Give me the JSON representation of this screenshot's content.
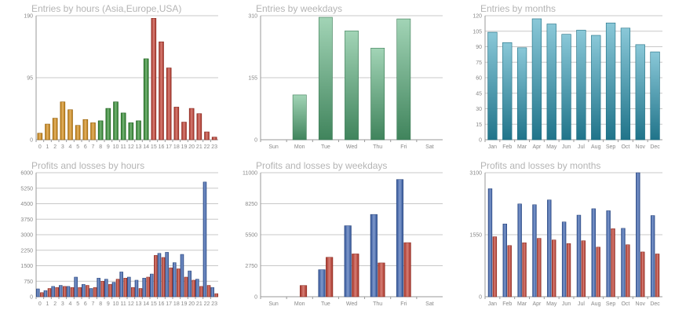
{
  "colors": {
    "hours_morning": "#d48a12",
    "hours_day": "#2e8b2e",
    "hours_evening": "#c0392b",
    "weekday_green": "#55b07a",
    "month_teal": "#2a9bb8",
    "profit_blue": "#3a62b0",
    "loss_red": "#c0392b",
    "grid": "#c8c8c8",
    "axis": "#999999"
  },
  "chart_data": [
    {
      "id": "entries-hours",
      "type": "bar",
      "title": "Entries by hours (Asia,Europe,USA)",
      "categories": [
        "0",
        "1",
        "2",
        "3",
        "4",
        "5",
        "6",
        "7",
        "8",
        "9",
        "10",
        "11",
        "12",
        "13",
        "14",
        "15",
        "16",
        "17",
        "18",
        "19",
        "20",
        "21",
        "22",
        "23"
      ],
      "values": [
        10,
        24,
        33,
        58,
        46,
        22,
        31,
        26,
        29,
        48,
        58,
        41,
        26,
        29,
        124,
        186,
        150,
        110,
        50,
        27,
        48,
        40,
        12,
        4
      ],
      "bar_colors": [
        "orange",
        "orange",
        "orange",
        "orange",
        "orange",
        "orange",
        "orange",
        "orange",
        "green",
        "green",
        "green",
        "green",
        "green",
        "green",
        "green",
        "red",
        "red",
        "red",
        "red",
        "red",
        "red",
        "red",
        "red",
        "red"
      ],
      "ylim": [
        0,
        190
      ],
      "yticks": [
        0,
        95,
        190
      ],
      "ylabels": [
        "0",
        "95",
        "190"
      ]
    },
    {
      "id": "entries-weekdays",
      "type": "bar",
      "title": "Entries by weekdays",
      "categories": [
        "Sun",
        "Mon",
        "Tue",
        "Wed",
        "Thu",
        "Fri",
        "Sat"
      ],
      "values": [
        0,
        112,
        306,
        272,
        229,
        302,
        0
      ],
      "ylim": [
        0,
        310
      ],
      "yticks": [
        0,
        155,
        310
      ],
      "ylabels": [
        "0",
        "155",
        "310"
      ]
    },
    {
      "id": "entries-months",
      "type": "bar",
      "title": "Entries by months",
      "categories": [
        "Jan",
        "Feb",
        "Mar",
        "Apr",
        "May",
        "Jun",
        "Jul",
        "Aug",
        "Sep",
        "Oct",
        "Nov",
        "Dec"
      ],
      "values": [
        104,
        94,
        89,
        117,
        112,
        102,
        106,
        101,
        113,
        108,
        92,
        85
      ],
      "ylim": [
        0,
        120
      ],
      "yticks": [
        0,
        15,
        30,
        45,
        60,
        75,
        90,
        105,
        120
      ],
      "ylabels": [
        "0",
        "15",
        "30",
        "45",
        "60",
        "75",
        "90",
        "105",
        "120"
      ]
    },
    {
      "id": "pl-hours",
      "type": "bar",
      "title": "Profits and losses by hours",
      "categories": [
        "0",
        "1",
        "2",
        "3",
        "4",
        "5",
        "6",
        "7",
        "8",
        "9",
        "10",
        "11",
        "12",
        "13",
        "14",
        "15",
        "16",
        "17",
        "18",
        "19",
        "20",
        "21",
        "22",
        "23"
      ],
      "series": [
        {
          "values": [
            380,
            300,
            500,
            550,
            500,
            950,
            600,
            400,
            900,
            850,
            700,
            1200,
            950,
            800,
            900,
            1100,
            2100,
            2150,
            1650,
            2050,
            1250,
            850,
            5550,
            450
          ]
        },
        {
          "values": [
            200,
            400,
            450,
            500,
            450,
            450,
            550,
            450,
            750,
            600,
            850,
            900,
            450,
            400,
            950,
            2000,
            1900,
            1400,
            1350,
            950,
            800,
            500,
            550,
            150
          ]
        }
      ],
      "series_colors": [
        "blue",
        "red"
      ],
      "ylim": [
        0,
        6000
      ],
      "yticks": [
        0,
        750,
        1500,
        2250,
        3000,
        3750,
        4500,
        5250,
        6000
      ],
      "ylabels": [
        "0",
        "750",
        "1500",
        "2250",
        "3000",
        "3750",
        "4500",
        "5250",
        "6000"
      ]
    },
    {
      "id": "pl-weekdays",
      "type": "bar",
      "title": "Profits and losses by weekdays",
      "categories": [
        "Sun",
        "Mon",
        "Tue",
        "Wed",
        "Thu",
        "Fri",
        "Sat"
      ],
      "series": [
        {
          "values": [
            0,
            0,
            2400,
            6300,
            7300,
            10400,
            0
          ]
        },
        {
          "values": [
            0,
            1000,
            3500,
            3800,
            3000,
            4800,
            0
          ]
        }
      ],
      "series_colors": [
        "blue",
        "red"
      ],
      "ylim": [
        0,
        11000
      ],
      "yticks": [
        0,
        2750,
        5500,
        8250,
        11000
      ],
      "ylabels": [
        "0",
        "2750",
        "5500",
        "8250",
        "11000"
      ]
    },
    {
      "id": "pl-months",
      "type": "bar",
      "title": "Profits and losses by months",
      "categories": [
        "Jan",
        "Feb",
        "Mar",
        "Apr",
        "May",
        "Jun",
        "Jul",
        "Aug",
        "Sep",
        "Oct",
        "Nov",
        "Dec"
      ],
      "series": [
        {
          "values": [
            2700,
            1820,
            2320,
            2300,
            2420,
            1870,
            2040,
            2200,
            2150,
            1710,
            3100,
            2030
          ]
        },
        {
          "values": [
            1500,
            1280,
            1350,
            1460,
            1420,
            1330,
            1400,
            1240,
            1700,
            1300,
            1120,
            1070
          ]
        }
      ],
      "series_colors": [
        "blue",
        "red"
      ],
      "ylim": [
        0,
        3100
      ],
      "yticks": [
        0,
        1550,
        3100
      ],
      "ylabels": [
        "0",
        "1550",
        "3100"
      ]
    }
  ]
}
